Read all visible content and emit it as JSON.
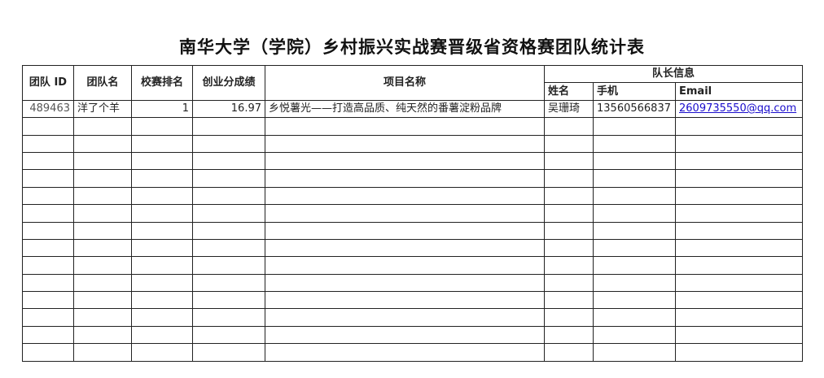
{
  "title": "南华大学（学院）乡村振兴实战赛晋级省资格赛团队统计表",
  "headers": {
    "team_id": "团队 ID",
    "team_name": "团队名",
    "rank": "校赛排名",
    "score": "创业分成绩",
    "project": "项目名称",
    "leader_group": "队长信息",
    "leader_name": "姓名",
    "phone": "手机",
    "email": "Email"
  },
  "rows": [
    {
      "team_id": "489463",
      "team_name": "洋了个羊",
      "rank": "1",
      "score": "16.97",
      "project": "乡悦薯光——打造高品质、纯天然的番薯淀粉品牌",
      "leader_name": "吴珊琦",
      "phone": "13560566837",
      "email": "2609735550@qq.com"
    }
  ],
  "empty_row_count": 14
}
